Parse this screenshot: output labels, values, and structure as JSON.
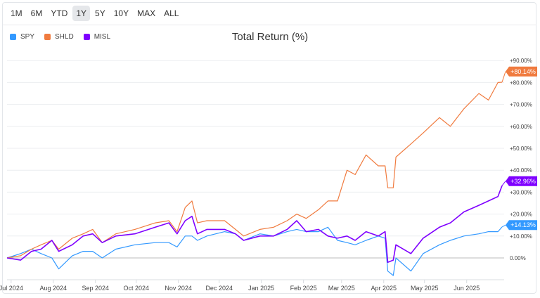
{
  "toolbar": {
    "ranges": [
      "1M",
      "6M",
      "YTD",
      "1Y",
      "5Y",
      "10Y",
      "MAX",
      "ALL"
    ],
    "active": "1Y"
  },
  "chart_data": {
    "type": "line",
    "title": "Total Return (%)",
    "ylim": [
      -8,
      95
    ],
    "y_ticks": [
      "0.00%",
      "+10.00%",
      "+20.00%",
      "+30.00%",
      "+40.00%",
      "+50.00%",
      "+60.00%",
      "+70.00%",
      "+80.00%",
      "+90.00%"
    ],
    "y_tick_values": [
      0,
      10,
      20,
      30,
      40,
      50,
      60,
      70,
      80,
      90
    ],
    "x_ticks": [
      "Jul 2024",
      "Aug 2024",
      "Sep 2024",
      "Oct 2024",
      "Nov 2024",
      "Dec 2024",
      "Jan 2025",
      "Feb 2025",
      "Mar 2025",
      "Apr 2025",
      "May 2025",
      "Jun 2025"
    ],
    "x_tick_dates": [
      "2024-07-01",
      "2024-08-01",
      "2024-09-01",
      "2024-10-01",
      "2024-11-01",
      "2024-12-01",
      "2025-01-01",
      "2025-02-01",
      "2025-03-01",
      "2025-04-01",
      "2025-05-01",
      "2025-06-01"
    ],
    "grid": true,
    "legend": "top-left",
    "x": [
      "2024-06-28",
      "2024-07-08",
      "2024-07-16",
      "2024-07-23",
      "2024-07-31",
      "2024-08-05",
      "2024-08-15",
      "2024-08-23",
      "2024-08-30",
      "2024-09-06",
      "2024-09-16",
      "2024-09-30",
      "2024-10-15",
      "2024-10-25",
      "2024-10-31",
      "2024-11-06",
      "2024-11-11",
      "2024-11-15",
      "2024-11-22",
      "2024-12-05",
      "2024-12-13",
      "2024-12-19",
      "2024-12-31",
      "2025-01-10",
      "2025-01-20",
      "2025-01-27",
      "2025-02-03",
      "2025-02-12",
      "2025-02-19",
      "2025-02-26",
      "2025-03-05",
      "2025-03-11",
      "2025-03-19",
      "2025-03-28",
      "2025-04-02",
      "2025-04-04",
      "2025-04-08",
      "2025-04-10",
      "2025-04-21",
      "2025-04-30",
      "2025-05-12",
      "2025-05-20",
      "2025-05-30",
      "2025-06-10",
      "2025-06-17",
      "2025-06-24",
      "2025-06-27"
    ],
    "series": [
      {
        "name": "SPY",
        "color": "#3399ff",
        "end_label": "+14.13%",
        "values": [
          0,
          2,
          4,
          2,
          0,
          -5,
          1,
          3,
          3,
          0,
          4,
          6,
          7,
          7,
          5,
          10,
          10,
          8,
          10,
          12,
          11,
          8,
          11,
          10,
          12,
          13,
          12,
          12,
          14,
          8,
          7,
          6,
          8,
          10,
          9,
          -6,
          -8,
          0,
          -6,
          2,
          6,
          8,
          10,
          11,
          12,
          12,
          14.13
        ]
      },
      {
        "name": "SHLD",
        "color": "#f07b3f",
        "end_label": "+80.14%",
        "values": [
          0,
          1,
          4,
          6,
          8,
          4,
          9,
          11,
          13,
          7,
          11,
          13,
          16,
          17,
          12,
          23,
          26,
          16,
          17,
          17,
          13,
          10,
          13,
          14,
          17,
          20,
          18,
          22,
          26,
          26,
          40,
          38,
          47,
          42,
          42,
          32,
          32,
          46,
          52,
          57,
          64,
          60,
          68,
          75,
          72,
          80,
          80.14
        ]
      },
      {
        "name": "MISL",
        "color": "#7f00ff",
        "end_label": "+32.96%",
        "values": [
          0,
          -1,
          3,
          4,
          8,
          3,
          6,
          10,
          11,
          7,
          10,
          11,
          14,
          16,
          11,
          17,
          19,
          11,
          13,
          13,
          11,
          8,
          10,
          10,
          13,
          17,
          12,
          13,
          10,
          9,
          10,
          8,
          12,
          10,
          12,
          -2,
          -1,
          6,
          2,
          9,
          14,
          16,
          21,
          24,
          26,
          28,
          32.96
        ]
      }
    ]
  }
}
